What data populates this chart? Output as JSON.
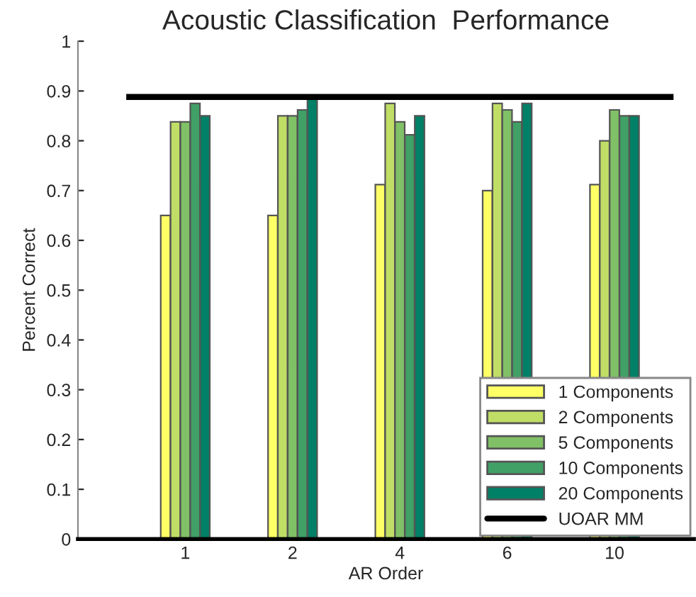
{
  "chart_data": {
    "type": "bar",
    "title": "Acoustic Classification  Performance",
    "xlabel": "AR Order",
    "ylabel": "Percent Correct",
    "categories": [
      "1",
      "2",
      "4",
      "6",
      "10"
    ],
    "series": [
      {
        "name": "1 Components",
        "color": "#ffff66",
        "values": [
          0.65,
          0.65,
          0.712,
          0.7,
          0.712
        ]
      },
      {
        "name": "2 Components",
        "color": "#c0de66",
        "values": [
          0.838,
          0.85,
          0.875,
          0.875,
          0.8
        ]
      },
      {
        "name": "5 Components",
        "color": "#80c066",
        "values": [
          0.838,
          0.85,
          0.838,
          0.862,
          0.862
        ]
      },
      {
        "name": "10 Components",
        "color": "#40a066",
        "values": [
          0.875,
          0.862,
          0.812,
          0.838,
          0.85
        ]
      },
      {
        "name": "20 Components",
        "color": "#008066",
        "values": [
          0.85,
          0.888,
          0.85,
          0.875,
          0.85
        ]
      }
    ],
    "ref_lines": [
      {
        "axis": "y",
        "value": 0.888,
        "label": "UOAR MM",
        "color": "#000000",
        "line_style": "solid"
      }
    ],
    "ylim": [
      0,
      1
    ],
    "yticks": [
      0,
      0.1,
      0.2,
      0.3,
      0.4,
      0.5,
      0.6,
      0.7,
      0.8,
      0.9,
      1
    ],
    "grid": false,
    "legend": "bottom right"
  }
}
